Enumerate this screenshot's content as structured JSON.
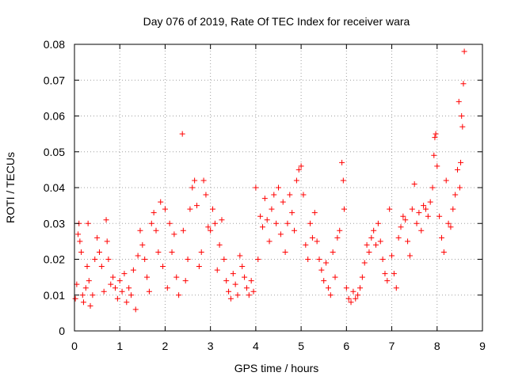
{
  "chart_data": {
    "type": "scatter",
    "title": "Day 076 of 2019, Rate Of TEC Index for receiver wara",
    "xlabel": "GPS time / hours",
    "ylabel": "ROTI / TECUs",
    "xlim": [
      0,
      9
    ],
    "ylim": [
      0,
      0.08
    ],
    "xticks": [
      0,
      1,
      2,
      3,
      4,
      5,
      6,
      7,
      8,
      9
    ],
    "xtick_labels": [
      "0",
      "1",
      "2",
      "3",
      "4",
      "5",
      "6",
      "7",
      "8",
      "9"
    ],
    "yticks": [
      0,
      0.01,
      0.02,
      0.03,
      0.04,
      0.05,
      0.06,
      0.07,
      0.08
    ],
    "ytick_labels": [
      "0",
      "0.01",
      "0.02",
      "0.03",
      "0.04",
      "0.05",
      "0.06",
      "0.07",
      "0.08"
    ],
    "grid": true,
    "marker": "+",
    "color": "#ff0000",
    "series": [
      {
        "name": "ROTI",
        "points": [
          [
            0.02,
            0.009
          ],
          [
            0.05,
            0.013
          ],
          [
            0.08,
            0.027
          ],
          [
            0.1,
            0.03
          ],
          [
            0.12,
            0.025
          ],
          [
            0.15,
            0.022
          ],
          [
            0.18,
            0.01
          ],
          [
            0.2,
            0.008
          ],
          [
            0.25,
            0.012
          ],
          [
            0.28,
            0.018
          ],
          [
            0.3,
            0.03
          ],
          [
            0.32,
            0.014
          ],
          [
            0.35,
            0.007
          ],
          [
            0.4,
            0.01
          ],
          [
            0.45,
            0.02
          ],
          [
            0.5,
            0.026
          ],
          [
            0.55,
            0.022
          ],
          [
            0.6,
            0.018
          ],
          [
            0.65,
            0.011
          ],
          [
            0.7,
            0.031
          ],
          [
            0.72,
            0.025
          ],
          [
            0.75,
            0.02
          ],
          [
            0.8,
            0.013
          ],
          [
            0.85,
            0.015
          ],
          [
            0.9,
            0.012
          ],
          [
            0.95,
            0.009
          ],
          [
            1.0,
            0.014
          ],
          [
            1.05,
            0.011
          ],
          [
            1.1,
            0.016
          ],
          [
            1.15,
            0.008
          ],
          [
            1.2,
            0.012
          ],
          [
            1.25,
            0.01
          ],
          [
            1.3,
            0.017
          ],
          [
            1.35,
            0.006
          ],
          [
            1.4,
            0.021
          ],
          [
            1.45,
            0.028
          ],
          [
            1.5,
            0.024
          ],
          [
            1.55,
            0.02
          ],
          [
            1.6,
            0.015
          ],
          [
            1.65,
            0.011
          ],
          [
            1.7,
            0.03
          ],
          [
            1.75,
            0.033
          ],
          [
            1.8,
            0.028
          ],
          [
            1.85,
            0.022
          ],
          [
            1.9,
            0.036
          ],
          [
            1.95,
            0.018
          ],
          [
            2.0,
            0.034
          ],
          [
            2.05,
            0.012
          ],
          [
            2.1,
            0.03
          ],
          [
            2.15,
            0.022
          ],
          [
            2.2,
            0.027
          ],
          [
            2.25,
            0.015
          ],
          [
            2.3,
            0.01
          ],
          [
            2.38,
            0.055
          ],
          [
            2.4,
            0.028
          ],
          [
            2.45,
            0.014
          ],
          [
            2.5,
            0.02
          ],
          [
            2.55,
            0.034
          ],
          [
            2.6,
            0.04
          ],
          [
            2.65,
            0.042
          ],
          [
            2.7,
            0.035
          ],
          [
            2.75,
            0.018
          ],
          [
            2.8,
            0.022
          ],
          [
            2.85,
            0.042
          ],
          [
            2.9,
            0.038
          ],
          [
            2.95,
            0.029
          ],
          [
            3.0,
            0.028
          ],
          [
            3.05,
            0.034
          ],
          [
            3.1,
            0.03
          ],
          [
            3.15,
            0.017
          ],
          [
            3.2,
            0.024
          ],
          [
            3.25,
            0.031
          ],
          [
            3.3,
            0.02
          ],
          [
            3.35,
            0.014
          ],
          [
            3.4,
            0.011
          ],
          [
            3.45,
            0.009
          ],
          [
            3.5,
            0.016
          ],
          [
            3.55,
            0.013
          ],
          [
            3.6,
            0.01
          ],
          [
            3.65,
            0.021
          ],
          [
            3.7,
            0.018
          ],
          [
            3.75,
            0.015
          ],
          [
            3.8,
            0.012
          ],
          [
            3.85,
            0.01
          ],
          [
            3.9,
            0.014
          ],
          [
            3.95,
            0.011
          ],
          [
            4.0,
            0.04
          ],
          [
            4.05,
            0.02
          ],
          [
            4.1,
            0.032
          ],
          [
            4.15,
            0.029
          ],
          [
            4.2,
            0.037
          ],
          [
            4.25,
            0.031
          ],
          [
            4.3,
            0.025
          ],
          [
            4.35,
            0.034
          ],
          [
            4.4,
            0.038
          ],
          [
            4.45,
            0.03
          ],
          [
            4.5,
            0.04
          ],
          [
            4.55,
            0.027
          ],
          [
            4.6,
            0.036
          ],
          [
            4.65,
            0.022
          ],
          [
            4.7,
            0.03
          ],
          [
            4.75,
            0.038
          ],
          [
            4.8,
            0.033
          ],
          [
            4.85,
            0.028
          ],
          [
            4.9,
            0.042
          ],
          [
            4.95,
            0.045
          ],
          [
            5.0,
            0.046
          ],
          [
            5.05,
            0.038
          ],
          [
            5.1,
            0.024
          ],
          [
            5.15,
            0.02
          ],
          [
            5.2,
            0.03
          ],
          [
            5.25,
            0.026
          ],
          [
            5.3,
            0.033
          ],
          [
            5.35,
            0.025
          ],
          [
            5.4,
            0.02
          ],
          [
            5.45,
            0.017
          ],
          [
            5.5,
            0.014
          ],
          [
            5.55,
            0.019
          ],
          [
            5.6,
            0.012
          ],
          [
            5.65,
            0.01
          ],
          [
            5.7,
            0.022
          ],
          [
            5.75,
            0.015
          ],
          [
            5.8,
            0.026
          ],
          [
            5.85,
            0.028
          ],
          [
            5.9,
            0.047
          ],
          [
            5.93,
            0.042
          ],
          [
            5.95,
            0.034
          ],
          [
            6.0,
            0.012
          ],
          [
            6.05,
            0.009
          ],
          [
            6.1,
            0.008
          ],
          [
            6.15,
            0.011
          ],
          [
            6.2,
            0.009
          ],
          [
            6.25,
            0.01
          ],
          [
            6.3,
            0.012
          ],
          [
            6.35,
            0.015
          ],
          [
            6.4,
            0.019
          ],
          [
            6.45,
            0.024
          ],
          [
            6.5,
            0.022
          ],
          [
            6.55,
            0.026
          ],
          [
            6.6,
            0.028
          ],
          [
            6.65,
            0.024
          ],
          [
            6.7,
            0.03
          ],
          [
            6.75,
            0.025
          ],
          [
            6.8,
            0.02
          ],
          [
            6.85,
            0.016
          ],
          [
            6.9,
            0.014
          ],
          [
            6.95,
            0.034
          ],
          [
            7.0,
            0.021
          ],
          [
            7.05,
            0.016
          ],
          [
            7.1,
            0.012
          ],
          [
            7.15,
            0.026
          ],
          [
            7.2,
            0.029
          ],
          [
            7.25,
            0.032
          ],
          [
            7.3,
            0.031
          ],
          [
            7.35,
            0.025
          ],
          [
            7.4,
            0.021
          ],
          [
            7.45,
            0.034
          ],
          [
            7.5,
            0.041
          ],
          [
            7.55,
            0.03
          ],
          [
            7.6,
            0.033
          ],
          [
            7.65,
            0.028
          ],
          [
            7.7,
            0.035
          ],
          [
            7.75,
            0.034
          ],
          [
            7.8,
            0.032
          ],
          [
            7.85,
            0.036
          ],
          [
            7.9,
            0.04
          ],
          [
            7.93,
            0.049
          ],
          [
            7.95,
            0.054
          ],
          [
            7.97,
            0.055
          ],
          [
            8.0,
            0.046
          ],
          [
            8.05,
            0.032
          ],
          [
            8.1,
            0.026
          ],
          [
            8.15,
            0.022
          ],
          [
            8.2,
            0.042
          ],
          [
            8.25,
            0.03
          ],
          [
            8.3,
            0.029
          ],
          [
            8.35,
            0.034
          ],
          [
            8.4,
            0.038
          ],
          [
            8.45,
            0.045
          ],
          [
            8.48,
            0.064
          ],
          [
            8.5,
            0.04
          ],
          [
            8.52,
            0.047
          ],
          [
            8.54,
            0.06
          ],
          [
            8.56,
            0.057
          ],
          [
            8.58,
            0.069
          ],
          [
            8.6,
            0.078
          ]
        ]
      }
    ]
  }
}
